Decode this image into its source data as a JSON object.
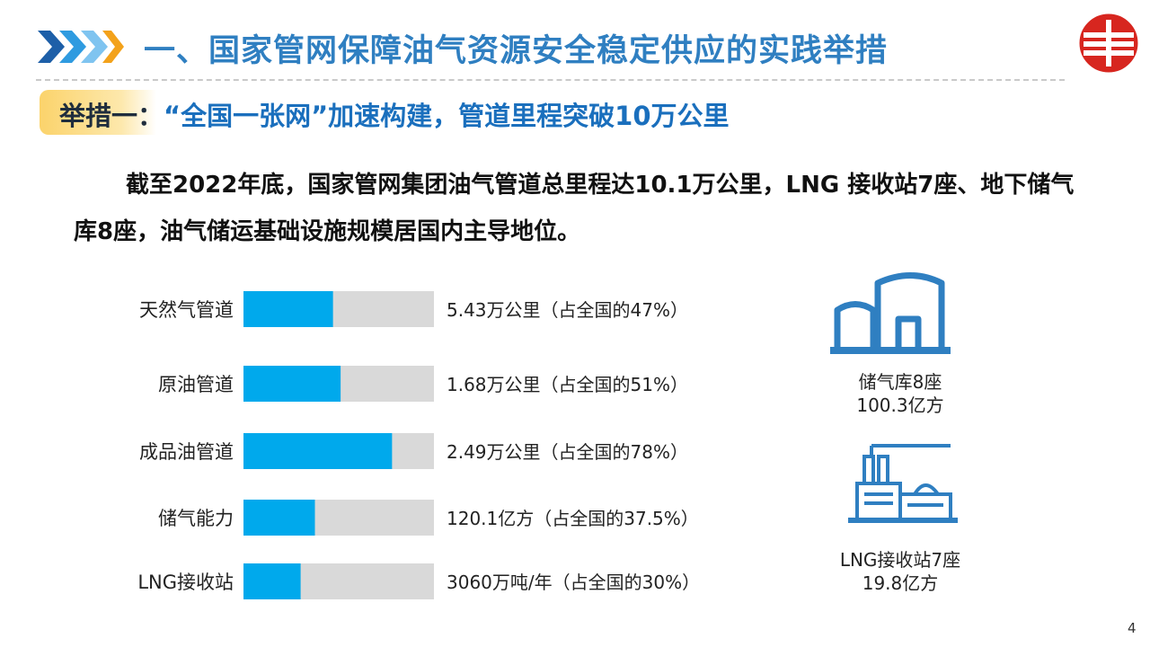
{
  "header": {
    "title": "一、国家管网保障油气资源安全稳定供应的实践举措",
    "subtitle_lead": "举措一：",
    "subtitle_text": "“全国一张网”加速构建，管道里程突破10万公里"
  },
  "paragraph": "截至2022年底，国家管网集团油气管道总里程达10.1万公里，LNG 接收站7座、地下储气库8座，油气储运基础设施规模居国内主导地位。",
  "chart_data": {
    "type": "bar",
    "orientation": "horizontal",
    "title": "",
    "xlabel": "",
    "ylabel": "",
    "xlim": [
      0,
      100
    ],
    "grid": false,
    "categories": [
      "天然气管道",
      "原油管道",
      "成品油管道",
      "储气能力",
      "LNG接收站"
    ],
    "values": [
      47,
      51,
      78,
      37.5,
      30
    ],
    "value_labels": [
      "5.43万公里（占全国的47%）",
      "1.68万公里（占全国的51%）",
      "2.49万公里（占全国的78%）",
      "120.1亿方（占全国的37.5%）",
      "3060万吨/年（占全国的30%）"
    ],
    "bar_color": "#00a9ec",
    "track_color": "#d9d9d9"
  },
  "facilities": {
    "storage": {
      "icon": "gas-storage-icon",
      "line1": "储气库8座",
      "line2": "100.3亿方"
    },
    "lng": {
      "icon": "lng-terminal-icon",
      "line1": "LNG接收站7座",
      "line2": "19.8亿方"
    }
  },
  "colors": {
    "title": "#2f7fc1",
    "accent_blue": "#00a9ec",
    "icon_blue": "#2f7fc1",
    "logo_red": "#d7261f"
  },
  "page_number": "4"
}
